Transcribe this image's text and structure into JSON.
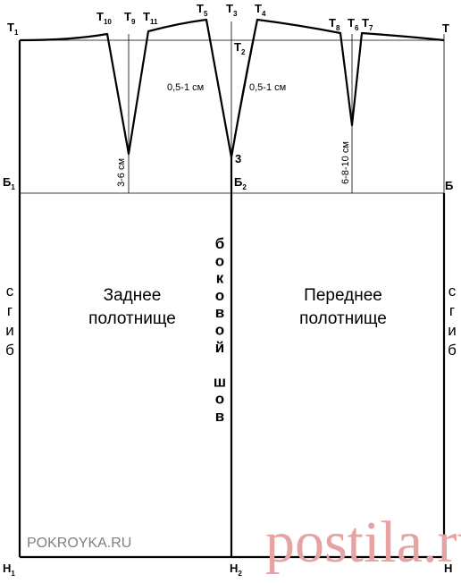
{
  "points": {
    "T1": {
      "base": "Т",
      "sub": "1"
    },
    "T10": {
      "base": "Т",
      "sub": "10"
    },
    "T9": {
      "base": "Т",
      "sub": "9"
    },
    "T11": {
      "base": "Т",
      "sub": "11"
    },
    "T5": {
      "base": "Т",
      "sub": "5"
    },
    "T3": {
      "base": "Т",
      "sub": "3"
    },
    "T4": {
      "base": "Т",
      "sub": "4"
    },
    "T2": {
      "base": "Т",
      "sub": "2"
    },
    "T8": {
      "base": "Т",
      "sub": "8"
    },
    "T6": {
      "base": "Т",
      "sub": "6"
    },
    "T7": {
      "base": "Т",
      "sub": "7"
    },
    "T": {
      "base": "Т",
      "sub": ""
    },
    "B1": {
      "base": "Б",
      "sub": "1"
    },
    "B2": {
      "base": "Б",
      "sub": "2"
    },
    "B": {
      "base": "Б",
      "sub": ""
    },
    "H1": {
      "base": "Н",
      "sub": "1"
    },
    "H2": {
      "base": "Н",
      "sub": "2"
    },
    "H": {
      "base": "Н",
      "sub": ""
    },
    "Z3": {
      "base": "3",
      "sub": ""
    }
  },
  "dims": {
    "back_dart_depth": "3-6 см",
    "front_dart_depth": "6-8-10 см",
    "side_left": "0,5-1 см",
    "side_right": "0,5-1 см"
  },
  "panels": {
    "back_line1": "Заднее",
    "back_line2": "полотнище",
    "front_line1": "Переднее",
    "front_line2": "полотнище"
  },
  "fold_letters": [
    "с",
    "г",
    "и",
    "б"
  ],
  "side_seam_letters": [
    "б",
    "о",
    "к",
    "о",
    "в",
    "о",
    "й",
    "",
    "ш",
    "о",
    "в"
  ],
  "watermark": {
    "site": "POKROYKA.RU",
    "logo": "postila.ru"
  }
}
